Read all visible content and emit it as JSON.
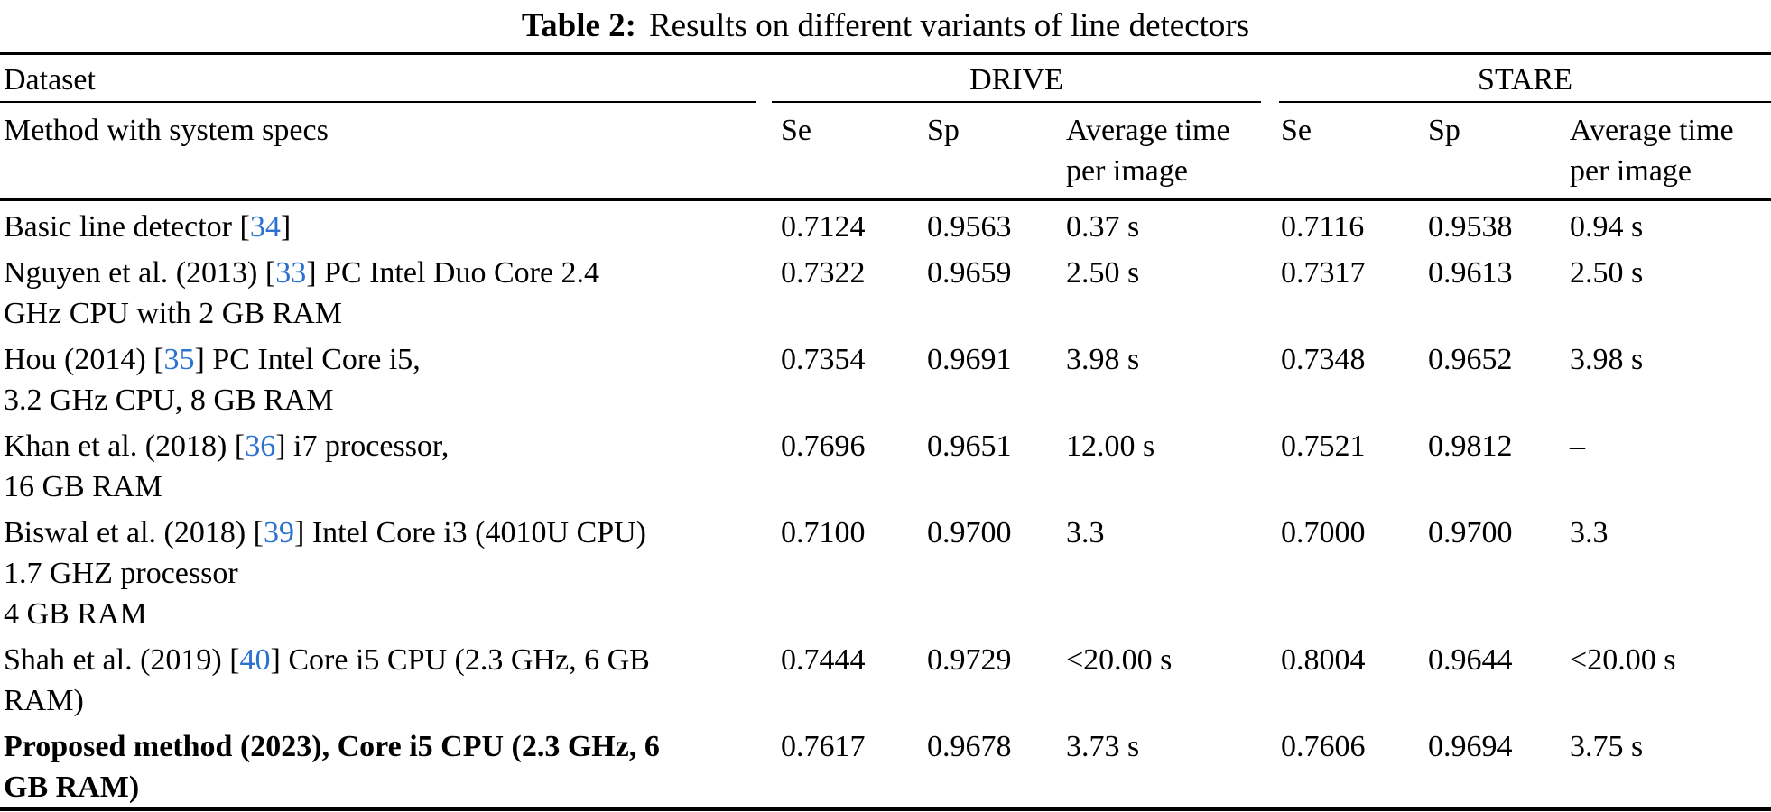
{
  "title": {
    "label": "Table 2:",
    "text": "Results on different variants of line detectors"
  },
  "header": {
    "dataset": "Dataset",
    "method": "Method with system specs",
    "groups": [
      {
        "name": "DRIVE",
        "cols": [
          "Se",
          "Sp",
          "Average time per image"
        ]
      },
      {
        "name": "STARE",
        "cols": [
          "Se",
          "Sp",
          "Average time per image"
        ]
      }
    ]
  },
  "colors": {
    "citation_blue": "#2b72cf",
    "text": "#000000",
    "rule": "#000000",
    "background": "#ffffff"
  },
  "rows": [
    {
      "bold": false,
      "method_lines": [
        [
          {
            "text": "Basic line detector ["
          },
          {
            "text": "34",
            "cite": true
          },
          {
            "text": "]"
          }
        ]
      ],
      "values": [
        "0.7124",
        "0.9563",
        "0.37 s",
        "0.7116",
        "0.9538",
        "0.94 s"
      ]
    },
    {
      "bold": false,
      "method_lines": [
        [
          {
            "text": "Nguyen et al. (2013) ["
          },
          {
            "text": "33",
            "cite": true
          },
          {
            "text": "] PC Intel Duo Core 2.4"
          }
        ],
        [
          {
            "text": "GHz CPU with 2 GB RAM"
          }
        ]
      ],
      "values": [
        "0.7322",
        "0.9659",
        "2.50 s",
        "0.7317",
        "0.9613",
        "2.50 s"
      ]
    },
    {
      "bold": false,
      "method_lines": [
        [
          {
            "text": "Hou (2014) ["
          },
          {
            "text": "35",
            "cite": true
          },
          {
            "text": "] PC Intel Core i5,"
          }
        ],
        [
          {
            "text": "3.2 GHz CPU, 8 GB RAM"
          }
        ]
      ],
      "values": [
        "0.7354",
        "0.9691",
        "3.98 s",
        "0.7348",
        "0.9652",
        "3.98 s"
      ]
    },
    {
      "bold": false,
      "method_lines": [
        [
          {
            "text": "Khan et al. (2018) ["
          },
          {
            "text": "36",
            "cite": true
          },
          {
            "text": "] i7 processor,"
          }
        ],
        [
          {
            "text": "16 GB RAM"
          }
        ]
      ],
      "values": [
        "0.7696",
        "0.9651",
        "12.00 s",
        "0.7521",
        "0.9812",
        "–"
      ]
    },
    {
      "bold": false,
      "method_lines": [
        [
          {
            "text": "Biswal et al. (2018) ["
          },
          {
            "text": "39",
            "cite": true
          },
          {
            "text": "] Intel Core i3 (4010U CPU)"
          }
        ],
        [
          {
            "text": "1.7 GHZ processor"
          }
        ],
        [
          {
            "text": "4 GB RAM"
          }
        ]
      ],
      "values": [
        "0.7100",
        "0.9700",
        "3.3",
        "0.7000",
        "0.9700",
        "3.3"
      ]
    },
    {
      "bold": false,
      "method_lines": [
        [
          {
            "text": "Shah et al. (2019) ["
          },
          {
            "text": "40",
            "cite": true
          },
          {
            "text": "] Core i5 CPU (2.3 GHz, 6 GB"
          }
        ],
        [
          {
            "text": "RAM)"
          }
        ]
      ],
      "values": [
        "0.7444",
        "0.9729",
        "<20.00 s",
        "0.8004",
        "0.9644",
        "<20.00 s"
      ]
    },
    {
      "bold": true,
      "method_lines": [
        [
          {
            "text": "Proposed method (2023), Core i5 CPU (2.3 GHz, 6"
          }
        ],
        [
          {
            "text": "GB RAM)"
          }
        ]
      ],
      "values": [
        "0.7617",
        "0.9678",
        "3.73 s",
        "0.7606",
        "0.9694",
        "3.75 s"
      ]
    }
  ]
}
